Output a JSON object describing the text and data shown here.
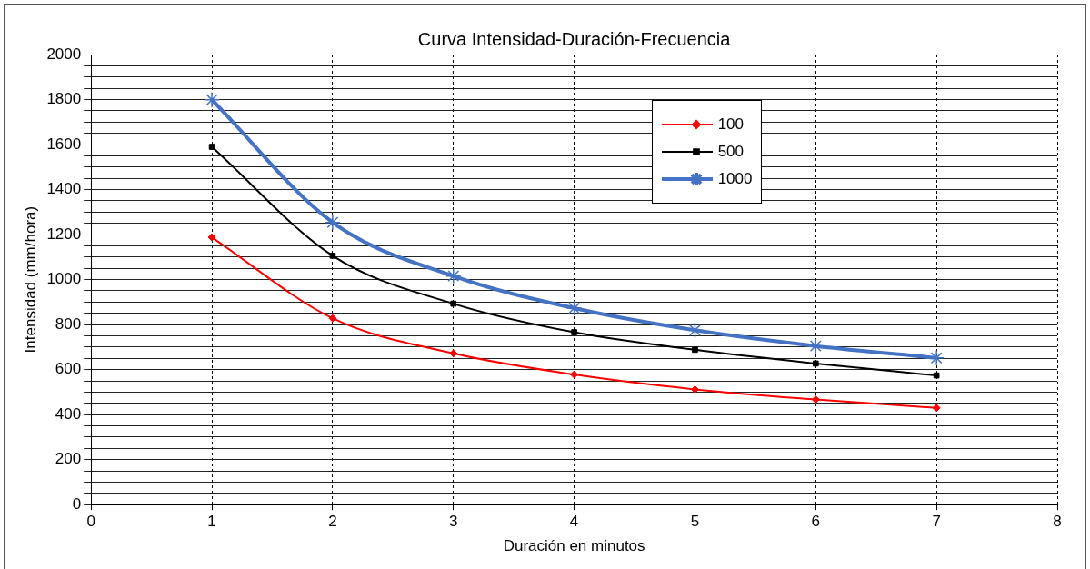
{
  "chart_data": {
    "type": "line",
    "title": "Curva Intensidad-Duración-Frecuencia",
    "xlabel": "Duración en minutos",
    "ylabel": "Intensidad (mm/hora)",
    "x": [
      1,
      2,
      3,
      4,
      5,
      6,
      7
    ],
    "series": [
      {
        "name": "100",
        "color": "#ff0000",
        "marker": "diamond",
        "values": [
          1188,
          828,
          672,
          578,
          512,
          467,
          430
        ]
      },
      {
        "name": "500",
        "color": "#000000",
        "marker": "square",
        "values": [
          1590,
          1106,
          893,
          766,
          688,
          627,
          574
        ]
      },
      {
        "name": "1000",
        "color": "#4472c4",
        "marker": "cross",
        "values": [
          1799,
          1254,
          1016,
          873,
          775,
          705,
          652
        ]
      }
    ],
    "xlim": [
      0,
      8
    ],
    "xticks": [
      0,
      1,
      2,
      3,
      4,
      5,
      6,
      7,
      8
    ],
    "ylim": [
      0,
      2000
    ],
    "yticks": [
      0,
      {
        "value": 50,
        "label": null
      },
      {
        "value": 100,
        "label": null
      },
      {
        "value": 150,
        "label": null
      },
      200,
      {
        "value": 250,
        "label": null
      },
      {
        "value": 300,
        "label": null
      },
      {
        "value": 350,
        "label": null
      },
      400,
      {
        "value": 450,
        "label": null
      },
      {
        "value": 500,
        "label": null
      },
      {
        "value": 550,
        "label": null
      },
      600,
      {
        "value": 650,
        "label": null
      },
      {
        "value": 700,
        "label": null
      },
      {
        "value": 750,
        "label": null
      },
      800,
      {
        "value": 850,
        "label": null
      },
      {
        "value": 900,
        "label": null
      },
      {
        "value": 950,
        "label": null
      },
      1000,
      {
        "value": 1050,
        "label": null
      },
      {
        "value": 1100,
        "label": null
      },
      {
        "value": 1150,
        "label": null
      },
      1200,
      {
        "value": 1250,
        "label": null
      },
      {
        "value": 1300,
        "label": null
      },
      {
        "value": 1350,
        "label": null
      },
      1400,
      {
        "value": 1450,
        "label": null
      },
      {
        "value": 1500,
        "label": null
      },
      {
        "value": 1550,
        "label": null
      },
      1600,
      {
        "value": 1650,
        "label": null
      },
      {
        "value": 1700,
        "label": null
      },
      {
        "value": 1750,
        "label": null
      },
      1800,
      {
        "value": 1850,
        "label": null
      },
      {
        "value": 1900,
        "label": null
      },
      {
        "value": 1950,
        "label": null
      },
      2000
    ],
    "grid": true,
    "legend": "top right",
    "line_style": "solid"
  }
}
